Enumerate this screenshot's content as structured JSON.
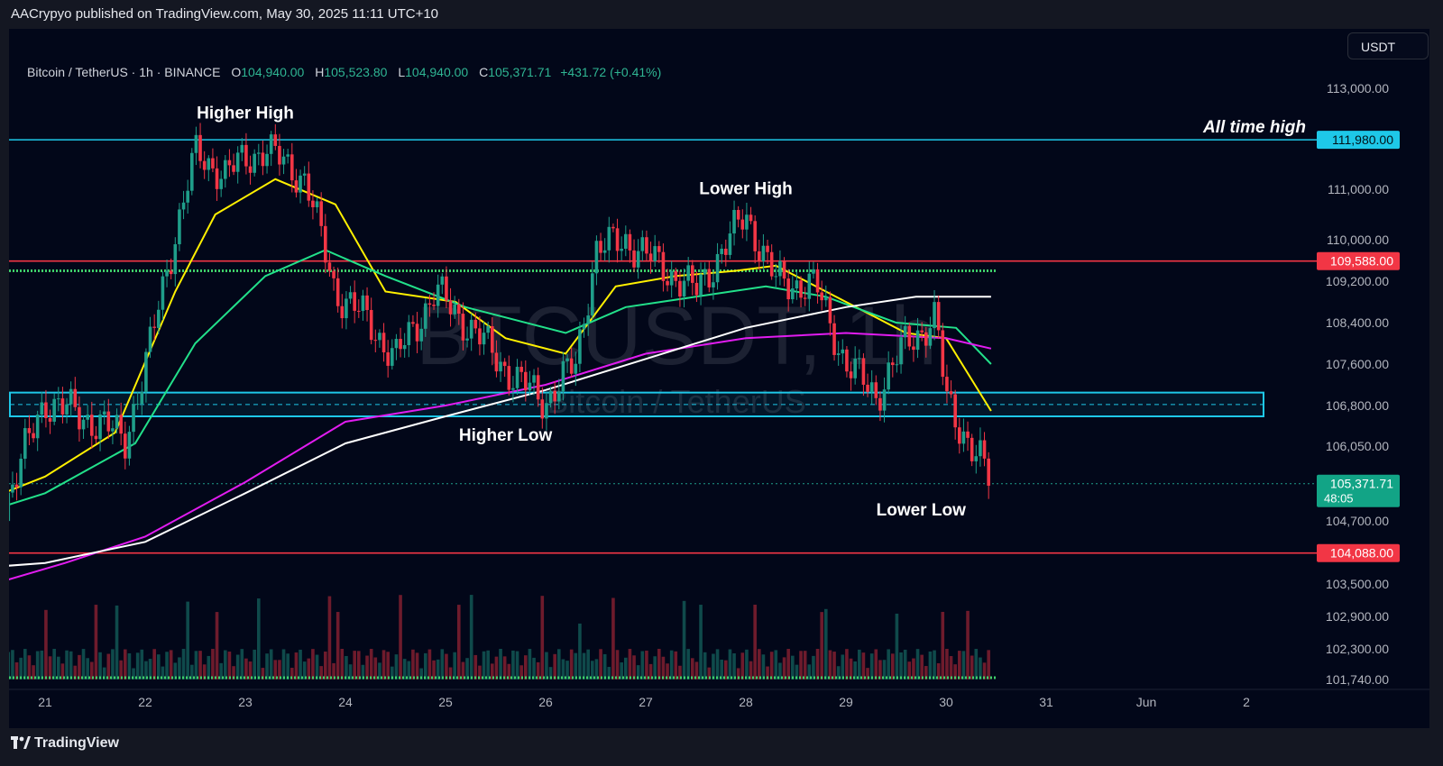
{
  "header": {
    "published_by": "AACrypyo published on TradingView.com, May 30, 2025 11:11 UTC+10"
  },
  "symbol": {
    "title": "Bitcoin / TetherUS · 1h · BINANCE",
    "open_label": "O",
    "open": "104,940.00",
    "high_label": "H",
    "high": "105,523.80",
    "low_label": "L",
    "low": "104,940.00",
    "close_label": "C",
    "close": "105,371.71",
    "change": "+431.72 (+0.41%)"
  },
  "currency_button": "USDT",
  "watermark": {
    "symbol": "BTCUSDT, 1h",
    "name": "Bitcoin / TetherUS"
  },
  "footer": {
    "brand": "TradingView",
    "logo_icon": "tradingview-logo-icon"
  },
  "colors": {
    "background": "#020719",
    "bull": "#1f9e8a",
    "bear": "#f23645",
    "ema_fast": "#fff000",
    "ema_mid": "#22e08a",
    "ema_slow": "#e11cf0",
    "ema_long": "#ffffff",
    "support_box": "#1ec8e8",
    "resistance_line": "#f23645",
    "dotted_green": "#3fd06a"
  },
  "chart_data": {
    "type": "candlestick",
    "title": "Bitcoin / TetherUS · 1h · BINANCE",
    "x_ticks": [
      "21",
      "22",
      "23",
      "24",
      "25",
      "26",
      "27",
      "28",
      "29",
      "30",
      "31",
      "Jun",
      "2"
    ],
    "y_ticks": [
      "113,000.00",
      "111,000.00",
      "110,000.00",
      "109,200.00",
      "108,400.00",
      "107,600.00",
      "106,800.00",
      "106,050.00",
      "104,700.00",
      "103,500.00",
      "102,900.00",
      "102,300.00",
      "101,740.00"
    ],
    "ylim": [
      101500,
      113500
    ],
    "grid": false,
    "price_path": [
      {
        "day": 20.3,
        "price": 106100
      },
      {
        "day": 20.6,
        "price": 105000
      },
      {
        "day": 21.0,
        "price": 106900
      },
      {
        "day": 21.5,
        "price": 106500
      },
      {
        "day": 21.8,
        "price": 106200
      },
      {
        "day": 22.0,
        "price": 107500
      },
      {
        "day": 22.2,
        "price": 109300
      },
      {
        "day": 22.5,
        "price": 111700
      },
      {
        "day": 22.8,
        "price": 111300
      },
      {
        "day": 23.0,
        "price": 111600
      },
      {
        "day": 23.2,
        "price": 111800
      },
      {
        "day": 23.6,
        "price": 111200
      },
      {
        "day": 23.9,
        "price": 109000
      },
      {
        "day": 24.2,
        "price": 108500
      },
      {
        "day": 24.5,
        "price": 107700
      },
      {
        "day": 24.9,
        "price": 109000
      },
      {
        "day": 25.3,
        "price": 108200
      },
      {
        "day": 25.7,
        "price": 107300
      },
      {
        "day": 26.0,
        "price": 106900
      },
      {
        "day": 26.3,
        "price": 107600
      },
      {
        "day": 26.5,
        "price": 109800
      },
      {
        "day": 26.8,
        "price": 110000
      },
      {
        "day": 27.0,
        "price": 109700
      },
      {
        "day": 27.5,
        "price": 109000
      },
      {
        "day": 27.8,
        "price": 109900
      },
      {
        "day": 28.0,
        "price": 110500
      },
      {
        "day": 28.3,
        "price": 109200
      },
      {
        "day": 28.7,
        "price": 109100
      },
      {
        "day": 29.0,
        "price": 107600
      },
      {
        "day": 29.3,
        "price": 107000
      },
      {
        "day": 29.6,
        "price": 108000
      },
      {
        "day": 29.9,
        "price": 108500
      },
      {
        "day": 30.0,
        "price": 106900
      },
      {
        "day": 30.3,
        "price": 105900
      },
      {
        "day": 30.45,
        "price": 105371.71
      }
    ],
    "moving_averages": [
      {
        "color": "#fff000",
        "points": [
          {
            "day": 20.3,
            "price": 105000
          },
          {
            "day": 21.0,
            "price": 105500
          },
          {
            "day": 21.7,
            "price": 106300
          },
          {
            "day": 22.3,
            "price": 109000
          },
          {
            "day": 22.7,
            "price": 110500
          },
          {
            "day": 23.3,
            "price": 111200
          },
          {
            "day": 23.9,
            "price": 110700
          },
          {
            "day": 24.4,
            "price": 109000
          },
          {
            "day": 25.1,
            "price": 108800
          },
          {
            "day": 25.6,
            "price": 108100
          },
          {
            "day": 26.2,
            "price": 107800
          },
          {
            "day": 26.7,
            "price": 109100
          },
          {
            "day": 27.3,
            "price": 109300
          },
          {
            "day": 27.9,
            "price": 109400
          },
          {
            "day": 28.3,
            "price": 109500
          },
          {
            "day": 29.0,
            "price": 108800
          },
          {
            "day": 29.6,
            "price": 108200
          },
          {
            "day": 30.0,
            "price": 108100
          },
          {
            "day": 30.45,
            "price": 106700
          }
        ]
      },
      {
        "color": "#22e08a",
        "points": [
          {
            "day": 20.3,
            "price": 104800
          },
          {
            "day": 21.0,
            "price": 105200
          },
          {
            "day": 21.9,
            "price": 106100
          },
          {
            "day": 22.5,
            "price": 108000
          },
          {
            "day": 23.2,
            "price": 109300
          },
          {
            "day": 23.8,
            "price": 109800
          },
          {
            "day": 24.4,
            "price": 109300
          },
          {
            "day": 25.2,
            "price": 108700
          },
          {
            "day": 26.2,
            "price": 108200
          },
          {
            "day": 26.8,
            "price": 108700
          },
          {
            "day": 27.5,
            "price": 108900
          },
          {
            "day": 28.2,
            "price": 109100
          },
          {
            "day": 28.8,
            "price": 108900
          },
          {
            "day": 29.5,
            "price": 108400
          },
          {
            "day": 30.1,
            "price": 108300
          },
          {
            "day": 30.45,
            "price": 107600
          }
        ]
      },
      {
        "color": "#e11cf0",
        "points": [
          {
            "day": 20.3,
            "price": 103400
          },
          {
            "day": 21.2,
            "price": 103900
          },
          {
            "day": 22.0,
            "price": 104400
          },
          {
            "day": 23.0,
            "price": 105400
          },
          {
            "day": 24.0,
            "price": 106500
          },
          {
            "day": 25.0,
            "price": 106800
          },
          {
            "day": 26.0,
            "price": 107200
          },
          {
            "day": 27.0,
            "price": 107800
          },
          {
            "day": 28.0,
            "price": 108100
          },
          {
            "day": 29.0,
            "price": 108200
          },
          {
            "day": 30.0,
            "price": 108100
          },
          {
            "day": 30.45,
            "price": 107900
          }
        ]
      },
      {
        "color": "#ffffff",
        "points": [
          {
            "day": 20.3,
            "price": 103800
          },
          {
            "day": 21.0,
            "price": 103900
          },
          {
            "day": 22.0,
            "price": 104300
          },
          {
            "day": 23.0,
            "price": 105200
          },
          {
            "day": 24.0,
            "price": 106100
          },
          {
            "day": 25.0,
            "price": 106600
          },
          {
            "day": 26.0,
            "price": 107100
          },
          {
            "day": 27.0,
            "price": 107700
          },
          {
            "day": 28.0,
            "price": 108300
          },
          {
            "day": 29.0,
            "price": 108700
          },
          {
            "day": 29.7,
            "price": 108900
          },
          {
            "day": 30.45,
            "price": 108900
          }
        ]
      }
    ],
    "levels": [
      {
        "price": 111980,
        "label": "111,980.00",
        "color": "#1ec8e8",
        "note": "All time high"
      },
      {
        "price": 109588,
        "label": "109,588.00",
        "color": "#f23645"
      },
      {
        "price": 104088,
        "label": "104,088.00",
        "color": "#f23645"
      }
    ],
    "dotted_level": {
      "price": 109400,
      "color": "#3fd06a"
    },
    "support_zone": {
      "low": 106600,
      "high": 107050,
      "color": "#1ec8e8"
    },
    "last_price": {
      "label": "105,371.71",
      "countdown": "48:05"
    },
    "annotations": [
      {
        "text": "Higher High",
        "day": 23.0,
        "price": 112400
      },
      {
        "text": "Lower High",
        "day": 28.0,
        "price": 110900
      },
      {
        "text": "Higher Low",
        "day": 25.6,
        "price": 106150
      },
      {
        "text": "Lower Low",
        "day": 29.75,
        "price": 104800
      }
    ]
  }
}
